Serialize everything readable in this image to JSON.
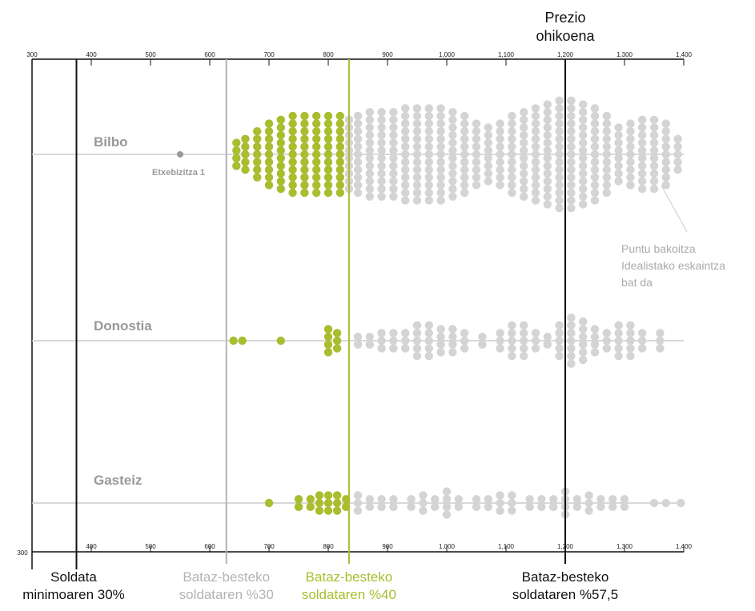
{
  "chart_data": {
    "type": "scatter",
    "xlim": [
      300,
      1400
    ],
    "x_ticks": [
      300,
      400,
      500,
      600,
      700,
      800,
      900,
      1000,
      1100,
      1200,
      1300,
      1400
    ],
    "x_tick_labels": [
      "300",
      "400",
      "500",
      "600",
      "700",
      "800",
      "900",
      "1,000",
      "1,100",
      "1,200",
      "1,300",
      "1,400"
    ],
    "threshold": 835,
    "colors": {
      "affordable": "#a9bd2e",
      "other": "#d4d4d4",
      "line_avg40": "#a9bd2e",
      "line_avg30": "#b3b3b3",
      "line_dark": "#111111",
      "city_text": "#999999",
      "row_line": "#cccccc"
    },
    "rows": [
      {
        "city": "Bilbo",
        "groups": [
          [
            550,
            1
          ],
          [
            645,
            4
          ],
          [
            660,
            5
          ],
          [
            680,
            7
          ],
          [
            700,
            9
          ],
          [
            720,
            10
          ],
          [
            740,
            11
          ],
          [
            760,
            11
          ],
          [
            780,
            11
          ],
          [
            800,
            11
          ],
          [
            820,
            11
          ],
          [
            835,
            10
          ],
          [
            850,
            11
          ],
          [
            870,
            12
          ],
          [
            890,
            12
          ],
          [
            910,
            12
          ],
          [
            930,
            13
          ],
          [
            950,
            13
          ],
          [
            970,
            13
          ],
          [
            990,
            13
          ],
          [
            1010,
            12
          ],
          [
            1030,
            11
          ],
          [
            1050,
            9
          ],
          [
            1070,
            8
          ],
          [
            1090,
            9
          ],
          [
            1110,
            11
          ],
          [
            1130,
            12
          ],
          [
            1150,
            13
          ],
          [
            1170,
            14
          ],
          [
            1190,
            15
          ],
          [
            1210,
            15
          ],
          [
            1230,
            14
          ],
          [
            1250,
            13
          ],
          [
            1270,
            11
          ],
          [
            1290,
            8
          ],
          [
            1310,
            9
          ],
          [
            1330,
            10
          ],
          [
            1350,
            10
          ],
          [
            1370,
            9
          ],
          [
            1390,
            5
          ]
        ],
        "highlight": {
          "label": "Etxebizitza 1",
          "x": 550
        }
      },
      {
        "city": "Donostia",
        "groups": [
          [
            640,
            1
          ],
          [
            655,
            1
          ],
          [
            720,
            1
          ],
          [
            800,
            4
          ],
          [
            815,
            3
          ],
          [
            850,
            2
          ],
          [
            870,
            2
          ],
          [
            890,
            3
          ],
          [
            910,
            3
          ],
          [
            930,
            3
          ],
          [
            950,
            5
          ],
          [
            970,
            5
          ],
          [
            990,
            4
          ],
          [
            1010,
            4
          ],
          [
            1030,
            3
          ],
          [
            1060,
            2
          ],
          [
            1090,
            3
          ],
          [
            1110,
            5
          ],
          [
            1130,
            5
          ],
          [
            1150,
            3
          ],
          [
            1170,
            2
          ],
          [
            1190,
            5
          ],
          [
            1210,
            7
          ],
          [
            1230,
            6
          ],
          [
            1250,
            4
          ],
          [
            1270,
            3
          ],
          [
            1290,
            5
          ],
          [
            1310,
            5
          ],
          [
            1330,
            3
          ],
          [
            1360,
            3
          ]
        ]
      },
      {
        "city": "Gasteiz",
        "groups": [
          [
            700,
            1
          ],
          [
            750,
            2
          ],
          [
            770,
            2
          ],
          [
            785,
            3
          ],
          [
            800,
            3
          ],
          [
            815,
            3
          ],
          [
            830,
            2
          ],
          [
            850,
            3
          ],
          [
            870,
            2
          ],
          [
            890,
            2
          ],
          [
            910,
            2
          ],
          [
            940,
            2
          ],
          [
            960,
            3
          ],
          [
            980,
            2
          ],
          [
            1000,
            4
          ],
          [
            1020,
            2
          ],
          [
            1050,
            2
          ],
          [
            1070,
            2
          ],
          [
            1090,
            3
          ],
          [
            1110,
            3
          ],
          [
            1140,
            2
          ],
          [
            1160,
            2
          ],
          [
            1180,
            2
          ],
          [
            1200,
            4
          ],
          [
            1220,
            2
          ],
          [
            1240,
            3
          ],
          [
            1260,
            2
          ],
          [
            1280,
            2
          ],
          [
            1300,
            2
          ],
          [
            1350,
            1
          ],
          [
            1370,
            1
          ],
          [
            1395,
            1
          ]
        ]
      }
    ],
    "vlines": [
      {
        "id": "soldata-min",
        "x": 375,
        "color": "#111111",
        "label": [
          "Soldata",
          "minimoaren 30%"
        ]
      },
      {
        "id": "avg30",
        "x": 628,
        "color": "#b3b3b3",
        "label": [
          "Bataz-besteko",
          "soldataren %30"
        ]
      },
      {
        "id": "avg40",
        "x": 835,
        "color": "#a9bd2e",
        "label": [
          "Bataz-besteko",
          "soldataren %40"
        ]
      },
      {
        "id": "avg575",
        "x": 1200,
        "color": "#111111",
        "label": [
          "Bataz-besteko",
          "soldataren %57,5"
        ],
        "top_label": [
          "Prezio",
          "ohikoena"
        ]
      }
    ],
    "annotation": [
      "Puntu bakoitza",
      "Idealistako eskaintza",
      "bat da"
    ]
  }
}
